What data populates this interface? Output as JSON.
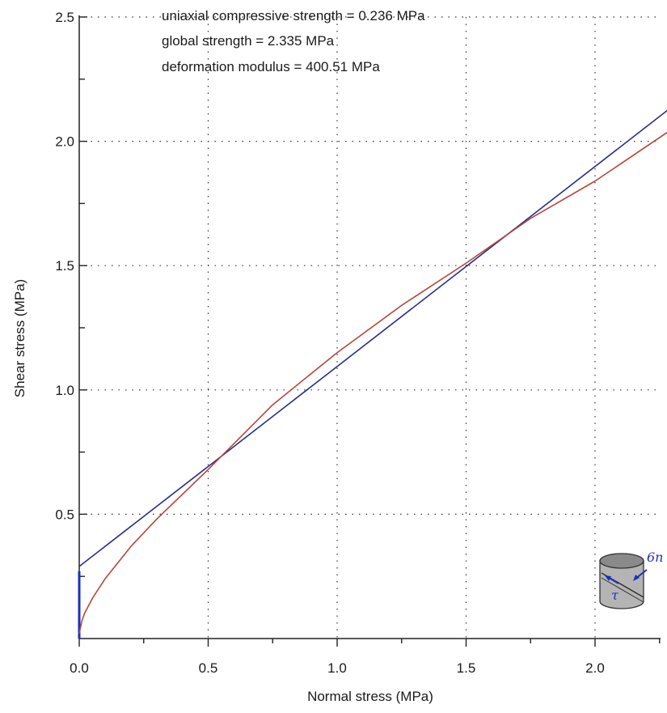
{
  "chart_data": {
    "type": "line",
    "xlabel": "Normal stress (MPa)",
    "ylabel": "Shear stress (MPa)",
    "xlim": [
      0,
      2.3
    ],
    "ylim": [
      0,
      2.5
    ],
    "x_ticks": [
      {
        "value": 0.0,
        "label": "0.0"
      },
      {
        "value": 0.5,
        "label": "0.5"
      },
      {
        "value": 1.0,
        "label": "1.0"
      },
      {
        "value": 1.5,
        "label": "1.5"
      },
      {
        "value": 2.0,
        "label": "2.0"
      }
    ],
    "y_ticks": [
      {
        "value": 0.5,
        "label": "0.5"
      },
      {
        "value": 1.0,
        "label": "1.0"
      },
      {
        "value": 1.5,
        "label": "1.5"
      },
      {
        "value": 2.0,
        "label": "2.0"
      },
      {
        "value": 2.5,
        "label": "2.5"
      }
    ],
    "grid": true,
    "annotations": [
      "uniaxial compressive strength = 0.236 MPa",
      "global strength = 2.335 MPa",
      "deformation modulus = 400.51 MPa"
    ],
    "series": [
      {
        "color": "#2a2f8c",
        "x": [
          0,
          2.3
        ],
        "y": [
          0.29,
          2.14
        ]
      },
      {
        "color": "#b5473a",
        "x": [
          0,
          0.01,
          0.02,
          0.05,
          0.1,
          0.2,
          0.3,
          0.5,
          0.75,
          1.0,
          1.25,
          1.5,
          1.75,
          2.0,
          2.3
        ],
        "y": [
          0.02,
          0.07,
          0.1,
          0.16,
          0.24,
          0.37,
          0.48,
          0.68,
          0.94,
          1.15,
          1.34,
          1.51,
          1.69,
          1.84,
          2.05
        ]
      }
    ],
    "y_axis_marker": {
      "color": "#1f2fb8",
      "y": [
        0,
        0.27
      ]
    }
  },
  "icon": {
    "name": "shear-specimen-icon",
    "labels": [
      "6n",
      "τ"
    ],
    "color": "#1f2fb8"
  }
}
